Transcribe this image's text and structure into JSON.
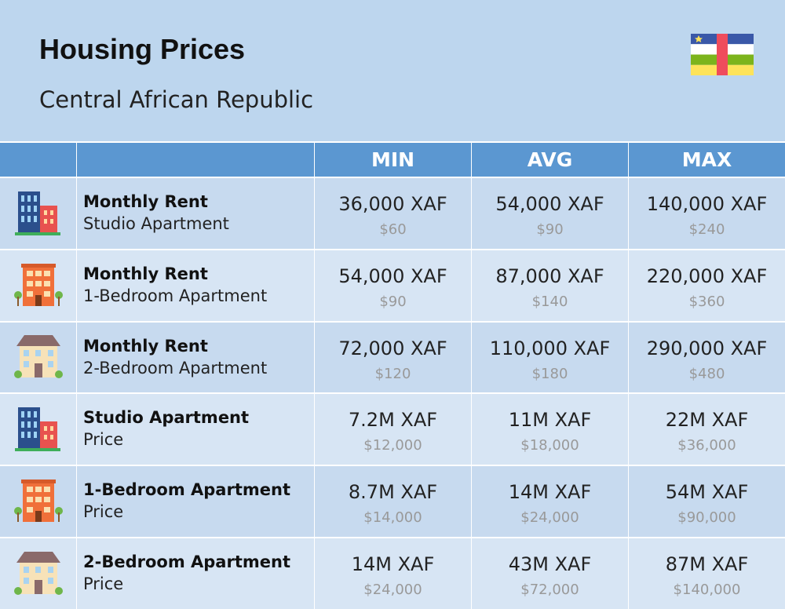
{
  "header": {
    "title": "Housing Prices",
    "subtitle": "Central African Republic"
  },
  "table": {
    "columns": [
      "MIN",
      "AVG",
      "MAX"
    ],
    "rows": [
      {
        "title": "Monthly Rent",
        "subtitle": "Studio Apartment",
        "cells": [
          {
            "local": "36,000 XAF",
            "usd": "$60"
          },
          {
            "local": "54,000 XAF",
            "usd": "$90"
          },
          {
            "local": "140,000 XAF",
            "usd": "$240"
          }
        ]
      },
      {
        "title": "Monthly Rent",
        "subtitle": "1-Bedroom Apartment",
        "cells": [
          {
            "local": "54,000 XAF",
            "usd": "$90"
          },
          {
            "local": "87,000 XAF",
            "usd": "$140"
          },
          {
            "local": "220,000 XAF",
            "usd": "$360"
          }
        ]
      },
      {
        "title": "Monthly Rent",
        "subtitle": "2-Bedroom Apartment",
        "cells": [
          {
            "local": "72,000 XAF",
            "usd": "$120"
          },
          {
            "local": "110,000 XAF",
            "usd": "$180"
          },
          {
            "local": "290,000 XAF",
            "usd": "$480"
          }
        ]
      },
      {
        "title": "Studio Apartment",
        "subtitle": "Price",
        "cells": [
          {
            "local": "7.2M XAF",
            "usd": "$12,000"
          },
          {
            "local": "11M XAF",
            "usd": "$18,000"
          },
          {
            "local": "22M XAF",
            "usd": "$36,000"
          }
        ]
      },
      {
        "title": "1-Bedroom Apartment",
        "subtitle": "Price",
        "cells": [
          {
            "local": "8.7M XAF",
            "usd": "$14,000"
          },
          {
            "local": "14M XAF",
            "usd": "$24,000"
          },
          {
            "local": "54M XAF",
            "usd": "$90,000"
          }
        ]
      },
      {
        "title": "2-Bedroom Apartment",
        "subtitle": "Price",
        "cells": [
          {
            "local": "14M XAF",
            "usd": "$24,000"
          },
          {
            "local": "43M XAF",
            "usd": "$72,000"
          },
          {
            "local": "87M XAF",
            "usd": "$140,000"
          }
        ]
      }
    ]
  }
}
